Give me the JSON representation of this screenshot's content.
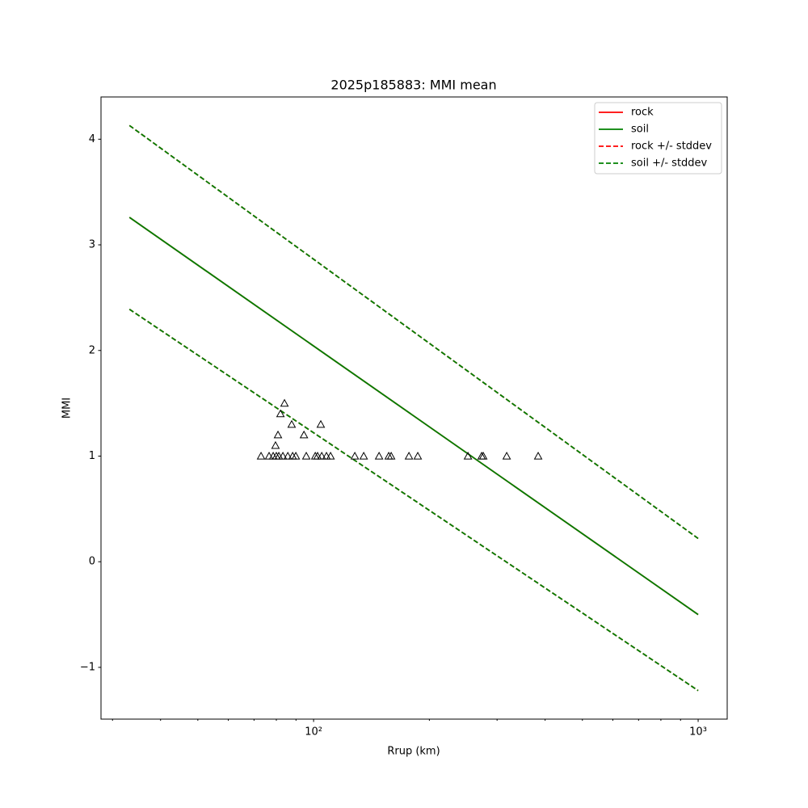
{
  "chart_data": {
    "type": "line",
    "title": "2025p185883: MMI mean",
    "xlabel": "Rrup (km)",
    "ylabel": "MMI",
    "xscale": "log",
    "xlim": [
      28,
      1190
    ],
    "ylim": [
      -1.49,
      4.4
    ],
    "xticks": [
      {
        "value": 100,
        "label": "10²"
      },
      {
        "value": 1000,
        "label": "10³"
      }
    ],
    "xminorticks": [
      30,
      40,
      50,
      60,
      70,
      80,
      90,
      200,
      300,
      400,
      500,
      600,
      700,
      800,
      900
    ],
    "yticks": [
      {
        "value": -1,
        "label": "−1"
      },
      0,
      1,
      2,
      3,
      4
    ],
    "legend": "upper right",
    "x": [
      33.2,
      1000
    ],
    "series": [
      {
        "name": "rock",
        "color": "#ff0000",
        "style": "solid",
        "values": [
          3.26,
          -0.5
        ]
      },
      {
        "name": "soil",
        "color": "#008000",
        "style": "solid",
        "values": [
          3.26,
          -0.5
        ]
      },
      {
        "name": "rock +/- stddev",
        "color": "#ff0000",
        "style": "dashed",
        "upper": [
          4.13,
          0.22
        ],
        "lower": [
          2.39,
          -1.22
        ]
      },
      {
        "name": "soil +/- stddev",
        "color": "#008000",
        "style": "dashed",
        "upper": [
          4.13,
          0.22
        ],
        "lower": [
          2.39,
          -1.22
        ]
      }
    ],
    "observations": {
      "marker": "triangle",
      "color": "#000000",
      "x": [
        73.0,
        76.6,
        78.5,
        80.0,
        81.2,
        83.2,
        85.7,
        88.2,
        89.9,
        95.7,
        101.0,
        102.4,
        105.0,
        108.0,
        110.7,
        128.0,
        135.0,
        148.0,
        156.8,
        159.1,
        177.0,
        186.6,
        252.0,
        273.5,
        276.2,
        317.8,
        383.7,
        79.6,
        80.8,
        82.0,
        84.0,
        87.7,
        94.4,
        104.4
      ],
      "y": [
        1,
        1,
        1,
        1,
        1,
        1,
        1,
        1,
        1,
        1,
        1,
        1,
        1,
        1,
        1,
        1,
        1,
        1,
        1,
        1,
        1,
        1,
        1,
        1,
        1,
        1,
        1,
        1.1,
        1.2,
        1.4,
        1.5,
        1.3,
        1.2,
        1.3
      ]
    }
  }
}
